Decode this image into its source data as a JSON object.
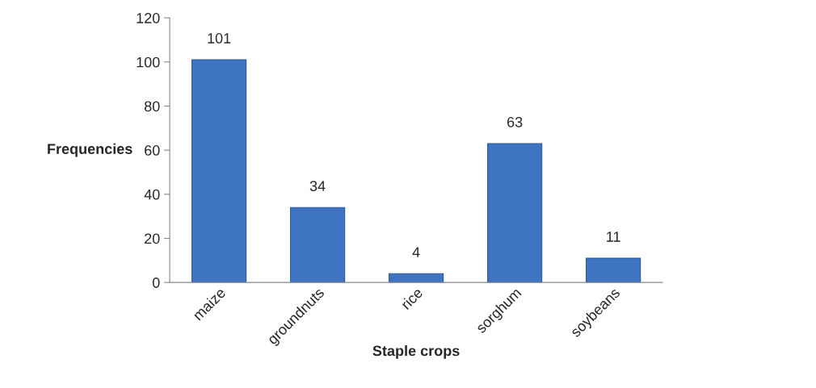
{
  "chart_data": {
    "type": "bar",
    "xlabel": "Staple crops",
    "ylabel": "Frequencies",
    "categories": [
      "maize",
      "groundnuts",
      "rice",
      "sorghum",
      "soybeans"
    ],
    "values": [
      101,
      34,
      4,
      63,
      11
    ],
    "color": "#3f74c2",
    "ylim": [
      0,
      120
    ],
    "yticks": [
      0,
      20,
      40,
      60,
      80,
      100,
      120
    ],
    "grid": false,
    "data_labels": true
  }
}
